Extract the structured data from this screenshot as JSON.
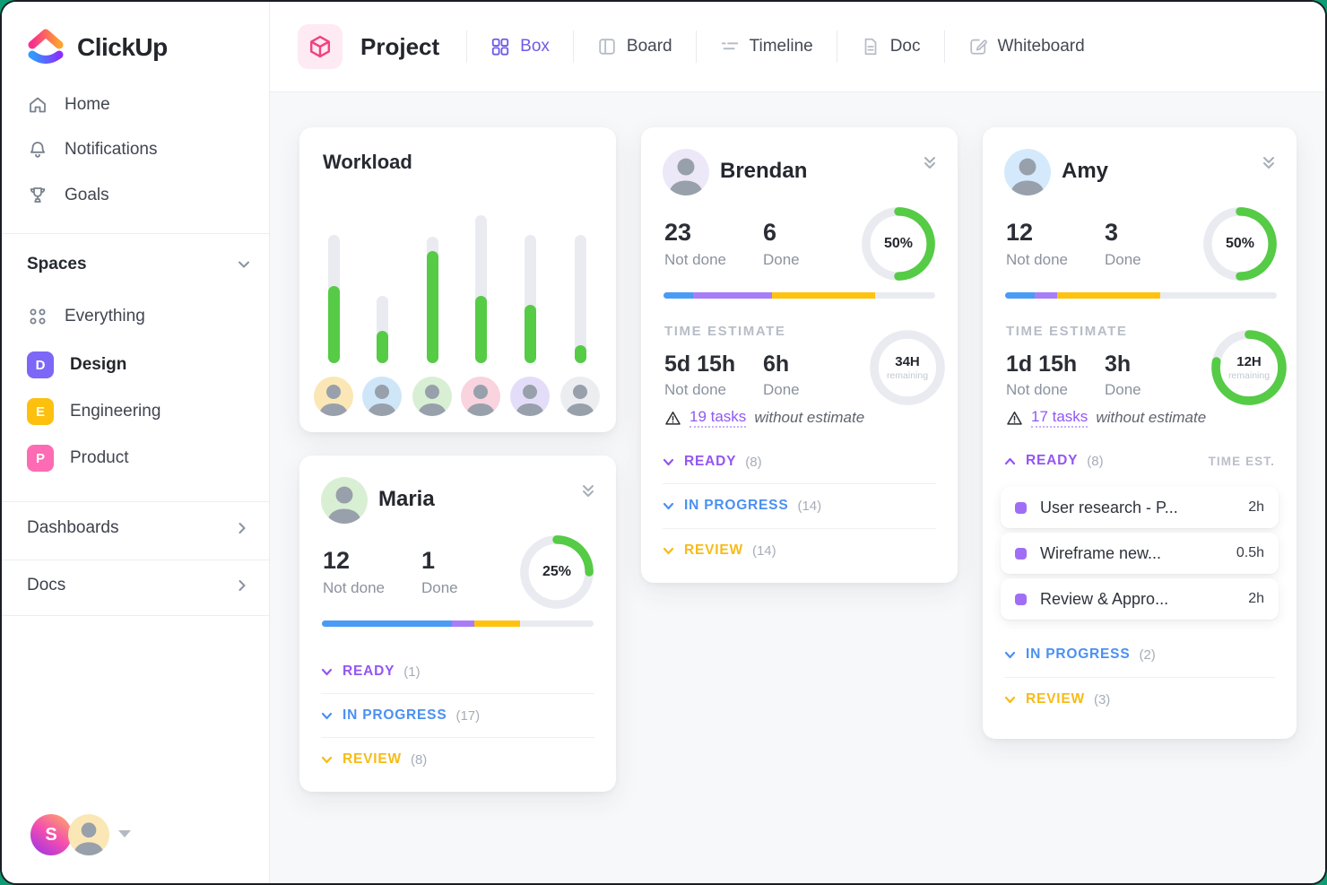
{
  "colors": {
    "green": "#55cb46",
    "track": "#e9ebf0",
    "accent_purple": "#6e5be8",
    "outer_background": "#0d9c74"
  },
  "sidebar": {
    "logo": {
      "text": "ClickUp"
    },
    "nav": [
      {
        "icon": "home-icon",
        "label": "Home"
      },
      {
        "icon": "bell-icon",
        "label": "Notifications"
      },
      {
        "icon": "trophy-icon",
        "label": "Goals"
      }
    ],
    "spaces": {
      "header": "Spaces",
      "items": [
        {
          "icon": "grid-dots-icon",
          "label": "Everything"
        },
        {
          "badge": "D",
          "badge_color": "#7d67f6",
          "label": "Design"
        },
        {
          "badge": "E",
          "badge_color": "#fdc00f",
          "label": "Engineering"
        },
        {
          "badge": "P",
          "badge_color": "#fd6bb4",
          "label": "Product"
        }
      ]
    },
    "links": [
      {
        "label": "Dashboards"
      },
      {
        "label": "Docs"
      }
    ],
    "user": {
      "initial": "S",
      "photo_avatar_color": "#fbe7b5"
    }
  },
  "topbar": {
    "view_title": "Project",
    "tabs": [
      {
        "label": "Box",
        "active": true
      },
      {
        "label": "Board",
        "active": false
      },
      {
        "label": "Timeline",
        "active": false
      },
      {
        "label": "Doc",
        "active": false
      },
      {
        "label": "Whiteboard",
        "active": false
      }
    ]
  },
  "cards": {
    "workload": {
      "title": "Workload",
      "bars": [
        {
          "track": 143,
          "fill": 86
        },
        {
          "track": 75,
          "fill": 36
        },
        {
          "track": 141,
          "fill": 125
        },
        {
          "track": 165,
          "fill": 75
        },
        {
          "track": 143,
          "fill": 65
        },
        {
          "track": 143,
          "fill": 20
        }
      ],
      "avatars": [
        {
          "color": "#fbe7b5"
        },
        {
          "color": "#cfe6f8"
        },
        {
          "color": "#d9efd4"
        },
        {
          "color": "#f9d3de"
        },
        {
          "color": "#e4ddf9"
        },
        {
          "color": "#ebedf0"
        }
      ]
    },
    "maria": {
      "name": "Maria",
      "avatar_color": "#d9efd4",
      "not_done": "12",
      "not_done_label": "Not done",
      "done": "1",
      "done_label": "Done",
      "percent": 25,
      "percent_label": "25%",
      "segments": [
        {
          "pct": 48,
          "color": "#4a9bf5"
        },
        {
          "pct": 8,
          "color": "#a77ef7"
        },
        {
          "pct": 17,
          "color": "#ffc30f"
        }
      ],
      "statuses": [
        {
          "label": "READY",
          "count": "(1)",
          "color": "#9356f4",
          "expanded": false
        },
        {
          "label": "IN PROGRESS",
          "count": "(17)",
          "color": "#4a90f4",
          "expanded": false
        },
        {
          "label": "REVIEW",
          "count": "(8)",
          "color": "#f7bb17",
          "expanded": false
        }
      ]
    },
    "brendan": {
      "name": "Brendan",
      "avatar_color": "#ece8f8",
      "not_done": "23",
      "not_done_label": "Not done",
      "done": "6",
      "done_label": "Done",
      "percent": 50,
      "percent_label": "50%",
      "segments": [
        {
          "pct": 11,
          "color": "#4a9bf5"
        },
        {
          "pct": 29,
          "color": "#a77ef7"
        },
        {
          "pct": 38,
          "color": "#ffc30f"
        }
      ],
      "time_estimate": {
        "heading": "TIME ESTIMATE",
        "not_done": "5d 15h",
        "not_done_label": "Not done",
        "done": "6h",
        "done_label": "Done",
        "ring_percent": 0,
        "ring_value": "34H",
        "ring_sub": "remaining",
        "warning_link": "19 tasks",
        "warning_rest": "without estimate"
      },
      "statuses": [
        {
          "label": "READY",
          "count": "(8)",
          "color": "#9356f4",
          "expanded": false
        },
        {
          "label": "IN PROGRESS",
          "count": "(14)",
          "color": "#4a90f4",
          "expanded": false
        },
        {
          "label": "REVIEW",
          "count": "(14)",
          "color": "#f7bb17",
          "expanded": false
        }
      ]
    },
    "amy": {
      "name": "Amy",
      "avatar_color": "#d4eafc",
      "not_done": "12",
      "not_done_label": "Not done",
      "done": "3",
      "done_label": "Done",
      "percent": 50,
      "percent_label": "50%",
      "segments": [
        {
          "pct": 11,
          "color": "#4a9bf5"
        },
        {
          "pct": 8,
          "color": "#a77ef7"
        },
        {
          "pct": 38,
          "color": "#ffc30f"
        }
      ],
      "time_estimate": {
        "heading": "TIME ESTIMATE",
        "not_done": "1d 15h",
        "not_done_label": "Not done",
        "done": "3h",
        "done_label": "Done",
        "ring_percent": 78,
        "ring_value": "12H",
        "ring_sub": "remaining",
        "warning_link": "17 tasks",
        "warning_rest": "without estimate"
      },
      "time_est_header": "TIME EST.",
      "statuses": [
        {
          "label": "READY",
          "count": "(8)",
          "color": "#9356f4",
          "expanded": true
        },
        {
          "label": "IN PROGRESS",
          "count": "(2)",
          "color": "#4a90f4",
          "expanded": false
        },
        {
          "label": "REVIEW",
          "count": "(3)",
          "color": "#f7bb17",
          "expanded": false
        }
      ],
      "tasks": [
        {
          "title": "User research - P...",
          "time": "2h",
          "bullet_color": "#a06ef5"
        },
        {
          "title": "Wireframe new...",
          "time": "0.5h",
          "bullet_color": "#a06ef5"
        },
        {
          "title": "Review & Appro...",
          "time": "2h",
          "bullet_color": "#a06ef5"
        }
      ]
    }
  }
}
